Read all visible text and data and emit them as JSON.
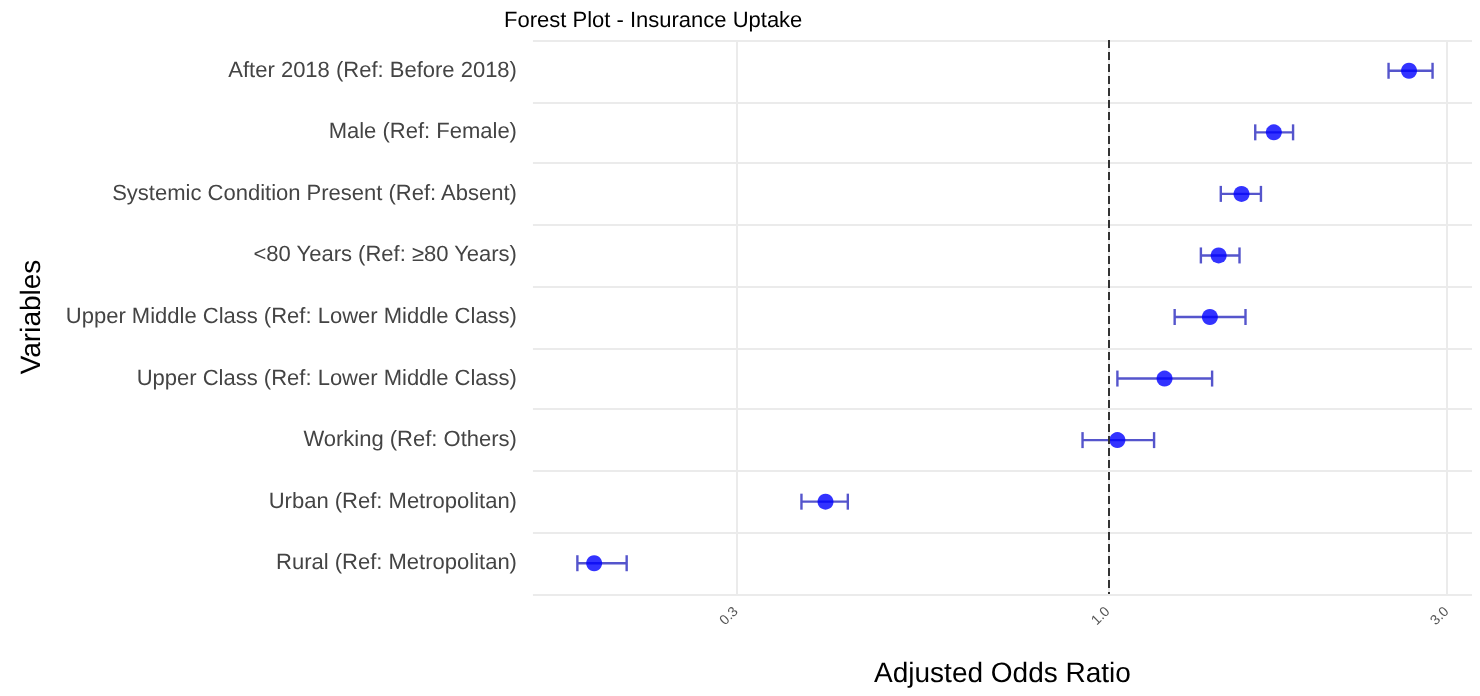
{
  "chart_data": {
    "type": "scatter",
    "title": "Forest Plot - Insurance Uptake",
    "xlabel": "Adjusted Odds Ratio",
    "ylabel": "Variables",
    "orientation": "horizontal",
    "categories": [
      "After 2018 (Ref: Before 2018)",
      "Male (Ref: Female)",
      "Systemic Condition Present (Ref: Absent)",
      "<80 Years (Ref: ≥80 Years)",
      "Upper Middle Class (Ref: Lower Middle Class)",
      "Upper Class (Ref: Lower Middle Class)",
      "Working (Ref: Others)",
      "Urban (Ref: Metropolitan)",
      "Rural (Ref: Metropolitan)"
    ],
    "series": [
      {
        "color": "#0000ff",
        "values": [
          2.65,
          1.71,
          1.54,
          1.43,
          1.39,
          1.2,
          1.03,
          0.4,
          0.189
        ],
        "errors": [
          [
            2.48,
            2.86
          ],
          [
            1.61,
            1.82
          ],
          [
            1.44,
            1.64
          ],
          [
            1.35,
            1.53
          ],
          [
            1.24,
            1.56
          ],
          [
            1.03,
            1.4
          ],
          [
            0.92,
            1.16
          ],
          [
            0.37,
            0.43
          ],
          [
            0.179,
            0.21
          ]
        ]
      }
    ],
    "xlim": [
      0.155,
      3.25
    ],
    "xticks": [
      0.3,
      {
        "value": 1,
        "label": "1.0"
      },
      {
        "value": 3,
        "label": "3.0"
      }
    ],
    "log": "x",
    "grid": true,
    "marker": "circle",
    "ref_lines": [
      {
        "axis": "x",
        "value": 1,
        "color": "#333333",
        "line_style": "dashed"
      }
    ]
  }
}
